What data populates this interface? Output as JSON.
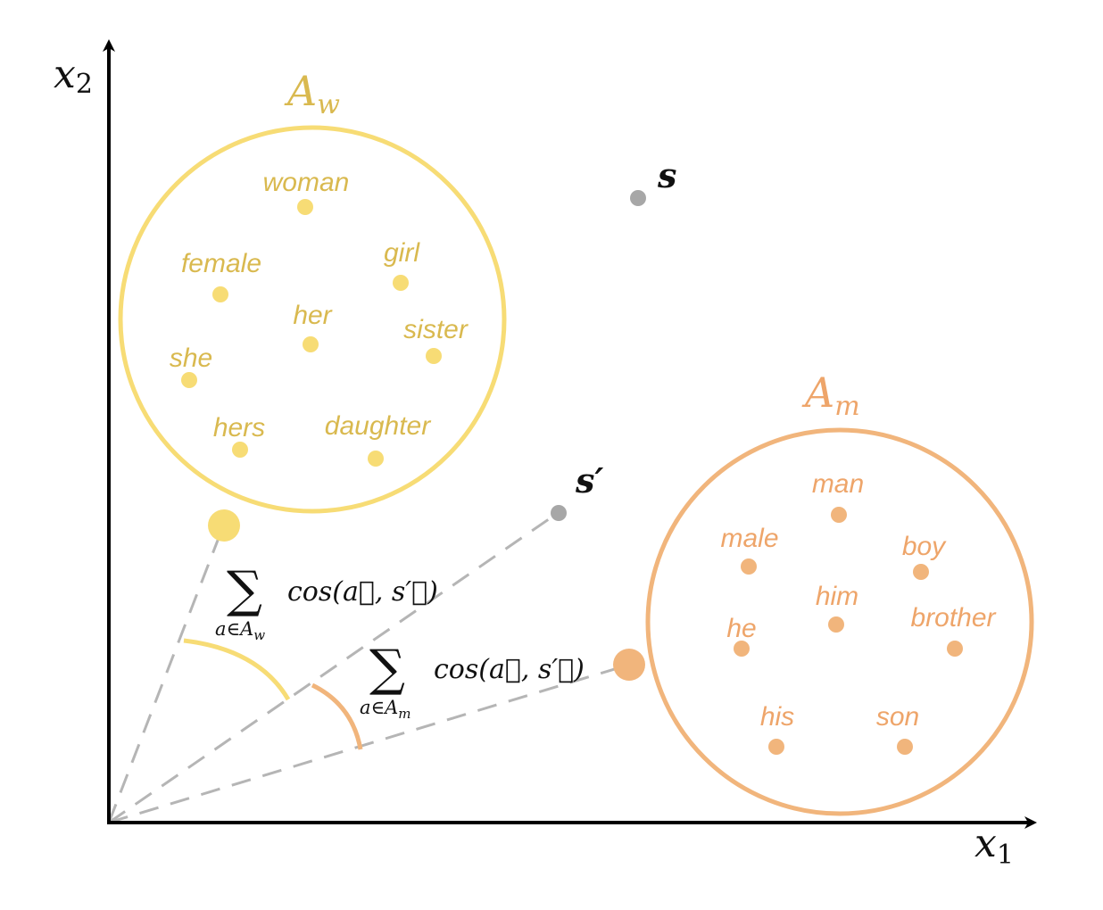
{
  "axes": {
    "x": {
      "var": "x",
      "sub": "1"
    },
    "y": {
      "var": "x",
      "sub": "2"
    }
  },
  "colors": {
    "women": "#f7dc75",
    "women_text": "#d9b94f",
    "men": "#f1b57c",
    "men_text": "#eea56a",
    "neutral": "#a7a7a7",
    "dashed": "#b5b5b5",
    "axis": "#000000"
  },
  "sets": {
    "women": {
      "title_main": "A",
      "title_sub": "w",
      "words": [
        "woman",
        "female",
        "girl",
        "her",
        "sister",
        "she",
        "hers",
        "daughter"
      ]
    },
    "men": {
      "title_main": "A",
      "title_sub": "m",
      "words": [
        "man",
        "male",
        "boy",
        "him",
        "he",
        "brother",
        "his",
        "son"
      ]
    }
  },
  "points": {
    "s": "s",
    "s_prime": "s′"
  },
  "formulas": {
    "women": {
      "sum": "∑",
      "body": "cos(a⃗, s′⃗)",
      "under": "a∈A",
      "under_sub": "w"
    },
    "men": {
      "sum": "∑",
      "body": "cos(a⃗, s′⃗)",
      "under": "a∈A",
      "under_sub": "m"
    }
  }
}
